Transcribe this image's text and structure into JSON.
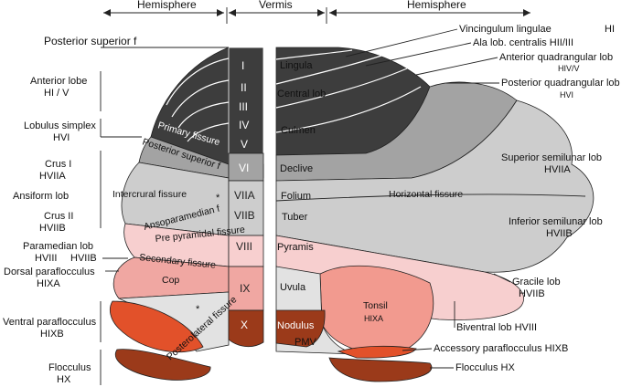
{
  "header": {
    "hemisphere_left": "Hemisphere",
    "vermis": "Vermis",
    "hemisphere_right": "Hemisphere"
  },
  "left_labels": {
    "posterior_superior": "Posterior superior f",
    "anterior_lobe": "Anterior lobe",
    "anterior_lobe_code": "HI / V",
    "lobulus_simplex": "Lobulus simplex",
    "lobulus_simplex_code": "HVI",
    "crus1": "Crus I",
    "crus1_code": "HVIIA",
    "ansiform": "Ansiform lob",
    "crus2": "Crus II",
    "crus2_code": "HVIIB",
    "paramedian": "Paramedian lob",
    "paramedian_code": "HVIII",
    "paramedian_code2": "HVIIB",
    "dorsal_paraflocculus": "Dorsal paraflocculus",
    "dorsal_paraflocculus_code": "HIXA",
    "ventral_paraflocculus": "Ventral paraflocculus",
    "ventral_paraflocculus_code": "HIXB",
    "flocculus": "Flocculus",
    "flocculus_code": "HX"
  },
  "inner_left": {
    "primary_fissure": "Primary fissure",
    "posterior_superior_f": "Posterior superior f",
    "intercrural_fissure": "Intercrural fissure",
    "ansoparamedian": "Ansoparamedian f",
    "prepyramidal": "Pre pyramidal fissure",
    "secondary": "Secondary fissure",
    "posterolateral": "Posterolateral fissure",
    "cop": "Cop",
    "asterisk": "*"
  },
  "lobules": [
    "I",
    "II",
    "III",
    "IV",
    "V",
    "VI",
    "VIIA",
    "VIIB",
    "VIII",
    "IX",
    "X"
  ],
  "vermis_labels": {
    "lingula": "Lingula",
    "central": "Central lob",
    "culmen": "Culmen",
    "declive": "Declive",
    "folium": "Folium",
    "tuber": "Tuber",
    "pyramis": "Pyramis",
    "uvula": "Uvula",
    "nodulus": "Nodulus",
    "pmv": "PMV"
  },
  "right_labels": {
    "vincingulum": "Vincingulum lingulae",
    "vincingulum_code": "HI",
    "ala": "Ala lob. centralis HII/III",
    "anterior_quadrangular": "Anterior quadrangular lob",
    "anterior_quadrangular_code": "HIV/V",
    "posterior_quadrangular": "Posterior quadrangular lob",
    "posterior_quadrangular_code": "HVI",
    "superior_semilunar": "Superior semilunar lob",
    "superior_semilunar_code": "HVIIA",
    "horizontal_fissure": "Horizontal fissure",
    "inferior_semilunar": "Inferior semilunar lob",
    "inferior_semilunar_code": "HVIIB",
    "gracile": "Gracile lob",
    "gracile_code": "HVIIB",
    "tonsil": "Tonsil",
    "tonsil_code": "HIXA",
    "biventral": "Biventral lob HVIII",
    "accessory_paraflocculus": "Accessory paraflocculus HIXB",
    "flocculus": "Flocculus HX"
  },
  "colors": {
    "dark_gray": "#3d3d3d",
    "mid_gray": "#a3a3a3",
    "light_gray": "#cdcdcd",
    "pale_gray": "#e2e2e2",
    "pink_light": "#f7cfcf",
    "pink_mid": "#f0a7a2",
    "salmon": "#f29a8f",
    "orange_red": "#e2512a",
    "brown": "#9b3a1a"
  }
}
